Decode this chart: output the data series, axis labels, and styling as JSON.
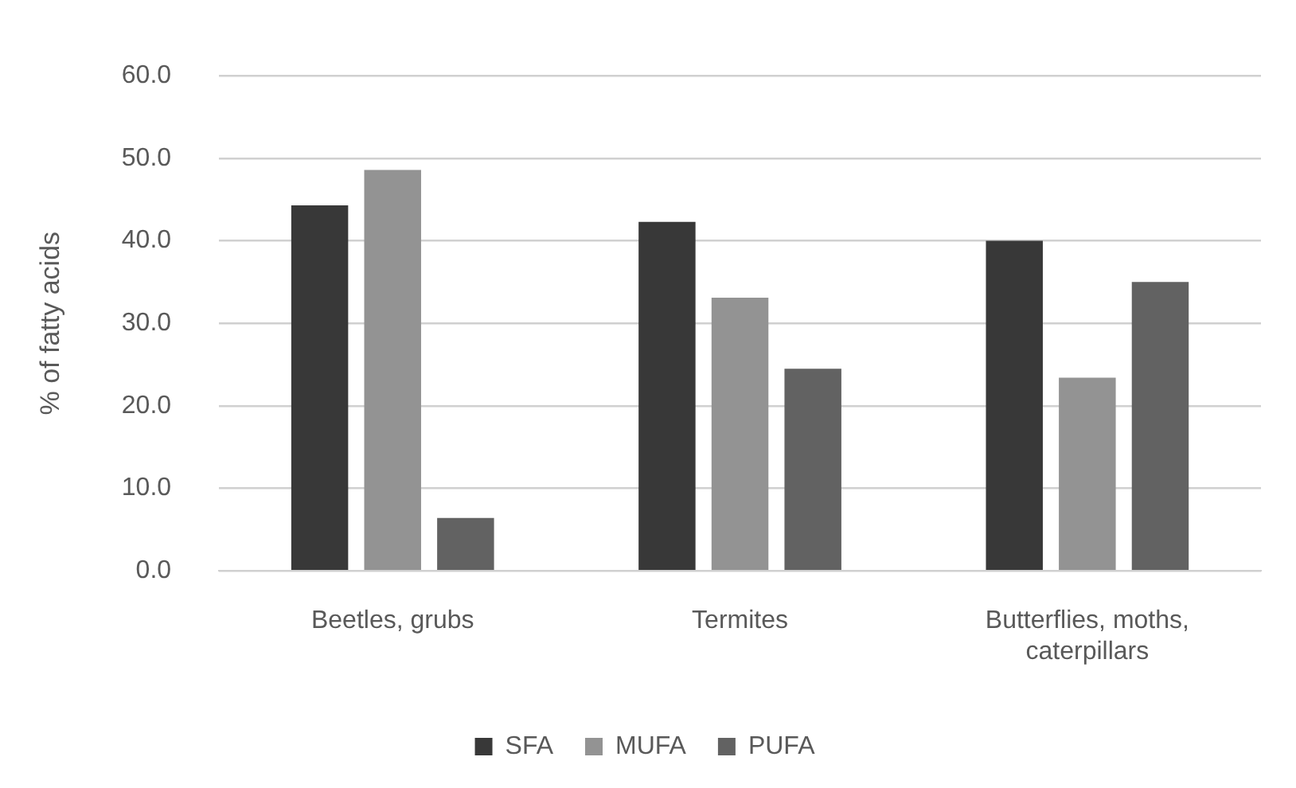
{
  "chart_data": {
    "type": "bar",
    "ylabel": "% of fatty acids",
    "categories": [
      "Beetles, grubs",
      "Termites",
      "Butterflies, moths, caterpillars"
    ],
    "series": [
      {
        "name": "SFA",
        "color": "#383838",
        "values": [
          44.3,
          42.3,
          40.0
        ]
      },
      {
        "name": "MUFA",
        "color": "#939393",
        "values": [
          48.6,
          33.1,
          23.4
        ]
      },
      {
        "name": "PUFA",
        "color": "#626262",
        "values": [
          6.4,
          24.5,
          35.0
        ]
      }
    ],
    "ylim": [
      0,
      60
    ],
    "yticks": [
      {
        "value": 0,
        "label": "0.0"
      },
      {
        "value": 10,
        "label": "10.0"
      },
      {
        "value": 20,
        "label": "20.0"
      },
      {
        "value": 30,
        "label": "30.0"
      },
      {
        "value": 40,
        "label": "40.0"
      },
      {
        "value": 50,
        "label": "50.0"
      },
      {
        "value": 60,
        "label": "60.0"
      }
    ],
    "grid": "y",
    "legend": "bottom"
  }
}
